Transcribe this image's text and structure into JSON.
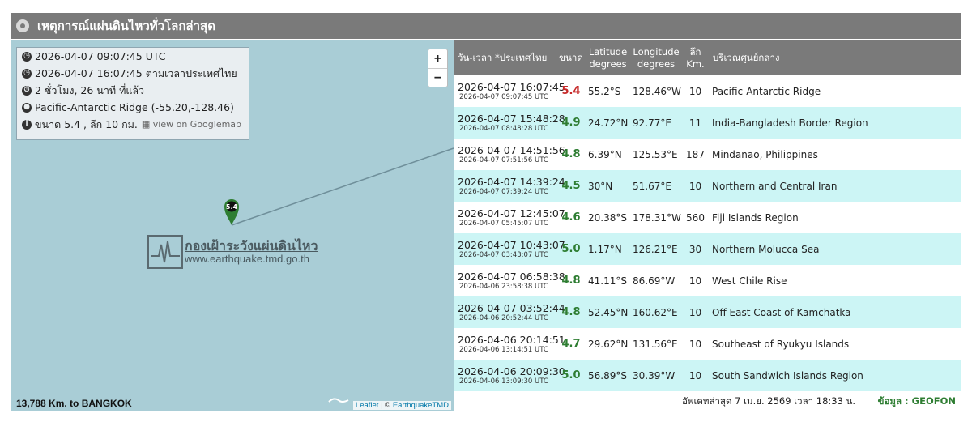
{
  "header": {
    "title": "เหตุการณ์แผ่นดินไหวทั่วโลกล่าสุด"
  },
  "map": {
    "info": {
      "utc_time": "2026-04-07 09:07:45 UTC",
      "thai_time": "2026-04-07 16:07:45 ตามเวลาประเทศไทย",
      "elapsed": "2 ชั่วโมง, 26 นาที ที่แล้ว",
      "location": "Pacific-Antarctic Ridge (-55.20,-128.46)",
      "summary": "ขนาด 5.4 , ลึก 10 กม.",
      "googlemap": "view on Googlemap"
    },
    "zoom_in": "+",
    "zoom_out": "−",
    "marker_label": "5.4",
    "watermark_title": "กองเฝ้าระวังแผ่นดินไหว",
    "watermark_url": "www.earthquake.tmd.go.th",
    "distance": "13,788 Km. to BANGKOK",
    "attribution_leaflet": "Leaflet",
    "attribution_sep": " | © ",
    "attribution_owner": "EarthquakeTMD",
    "marker_color": "#2e7d32",
    "ocean_color": "#a9cdd6"
  },
  "table": {
    "headers": {
      "datetime": "วัน-เวลา *ประเทศไทย",
      "mag": "ขนาด",
      "lat_1": "Latitude",
      "lat_2": "degrees",
      "lon_1": "Longitude",
      "lon_2": "degrees",
      "depth_1": "ลึก",
      "depth_2": "Km.",
      "region": "บริเวณศูนย์กลาง"
    },
    "rows": [
      {
        "local": "2026-04-07 16:07:45",
        "utc": "2026-04-07 09:07:45 UTC",
        "mag": "5.4",
        "lat": "55.2°S",
        "lon": "128.46°W",
        "depth": "10",
        "region": "Pacific-Antarctic Ridge"
      },
      {
        "local": "2026-04-07 15:48:28",
        "utc": "2026-04-07 08:48:28 UTC",
        "mag": "4.9",
        "lat": "24.72°N",
        "lon": "92.77°E",
        "depth": "11",
        "region": "India-Bangladesh Border Region"
      },
      {
        "local": "2026-04-07 14:51:56",
        "utc": "2026-04-07 07:51:56 UTC",
        "mag": "4.8",
        "lat": "6.39°N",
        "lon": "125.53°E",
        "depth": "187",
        "region": "Mindanao, Philippines"
      },
      {
        "local": "2026-04-07 14:39:24",
        "utc": "2026-04-07 07:39:24 UTC",
        "mag": "4.5",
        "lat": "30°N",
        "lon": "51.67°E",
        "depth": "10",
        "region": "Northern and Central Iran"
      },
      {
        "local": "2026-04-07 12:45:07",
        "utc": "2026-04-07 05:45:07 UTC",
        "mag": "4.6",
        "lat": "20.38°S",
        "lon": "178.31°W",
        "depth": "560",
        "region": "Fiji Islands Region"
      },
      {
        "local": "2026-04-07 10:43:07",
        "utc": "2026-04-07 03:43:07 UTC",
        "mag": "5.0",
        "lat": "1.17°N",
        "lon": "126.21°E",
        "depth": "30",
        "region": "Northern Molucca Sea"
      },
      {
        "local": "2026-04-07 06:58:38",
        "utc": "2026-04-06 23:58:38 UTC",
        "mag": "4.8",
        "lat": "41.11°S",
        "lon": "86.69°W",
        "depth": "10",
        "region": "West Chile Rise"
      },
      {
        "local": "2026-04-07 03:52:44",
        "utc": "2026-04-06 20:52:44 UTC",
        "mag": "4.8",
        "lat": "52.45°N",
        "lon": "160.62°E",
        "depth": "10",
        "region": "Off East Coast of Kamchatka"
      },
      {
        "local": "2026-04-06 20:14:51",
        "utc": "2026-04-06 13:14:51 UTC",
        "mag": "4.7",
        "lat": "29.62°N",
        "lon": "131.56°E",
        "depth": "10",
        "region": "Southeast of Ryukyu Islands"
      },
      {
        "local": "2026-04-06 20:09:30",
        "utc": "2026-04-06 13:09:30 UTC",
        "mag": "5.0",
        "lat": "56.89°S",
        "lon": "30.39°W",
        "depth": "10",
        "region": "South Sandwich Islands Region"
      }
    ],
    "mag_colors": {
      "high": "#c62828",
      "normal": "#2e7d32"
    }
  },
  "footer": {
    "updated": "อัพเดทล่าสุด 7 เม.ย. 2569 เวลา 18:33 น.",
    "source": "ข้อมูล : GEOFON"
  }
}
